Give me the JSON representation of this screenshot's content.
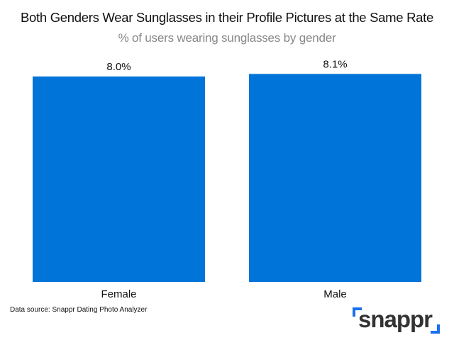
{
  "chart_data": {
    "type": "bar",
    "title": "Both Genders Wear Sunglasses in their Profile Pictures at the Same Rate",
    "subtitle": "% of users wearing sunglasses by gender",
    "categories": [
      "Female",
      "Male"
    ],
    "values": [
      8.0,
      8.1
    ],
    "data_labels": [
      "8.0%",
      "8.1%"
    ],
    "ylim": [
      0,
      8.1
    ],
    "grid": false,
    "bar_color": "#0074D9"
  },
  "source": "Data source: Snappr Dating Photo Analyzer",
  "logo": {
    "text": "snappr",
    "accent": "#1a6ff0"
  }
}
